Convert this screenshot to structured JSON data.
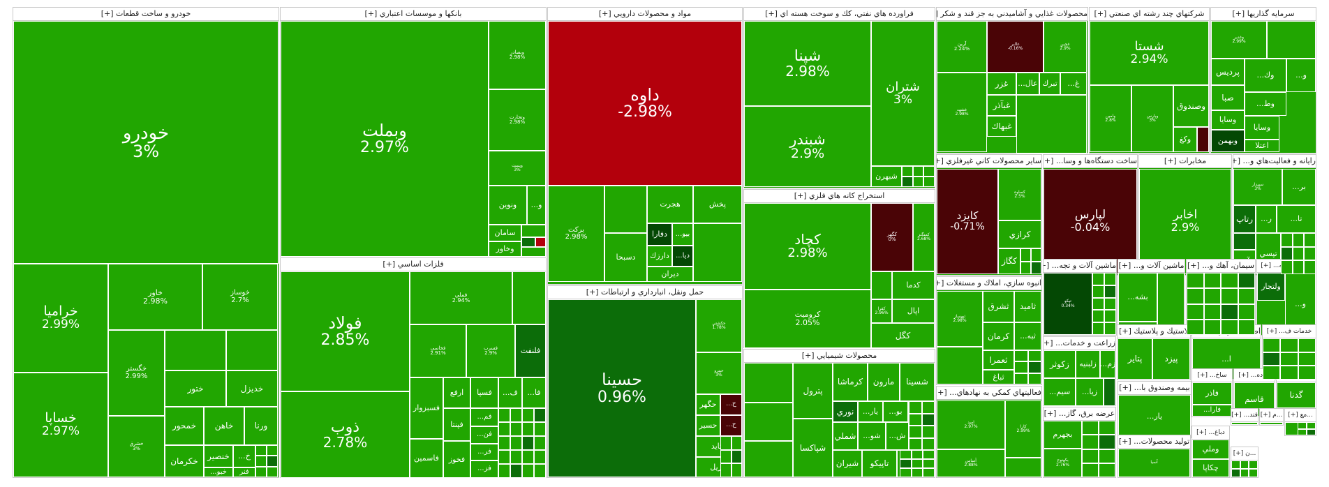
{
  "chart_data": {
    "type": "treemap",
    "title": "",
    "colors": {
      "up": "#21a601",
      "up_dark": "#0c6d09",
      "up_darker": "#044804",
      "down": "#b3000c",
      "down_dark": "#4a0406",
      "border": "#ffffff",
      "header_bg": "#ffffff"
    },
    "sectors": [
      {
        "name": "خودرو و ساخت قطعات [+]",
        "stocks": [
          {
            "symbol": "خودرو",
            "change": "3%"
          },
          {
            "symbol": "خراميا",
            "change": "2.99%"
          },
          {
            "symbol": "خساپا",
            "change": "2.97%"
          },
          {
            "symbol": "خاور",
            "change": "2.98%"
          },
          {
            "symbol": "خوساز",
            "change": "2.7%"
          },
          {
            "symbol": "خگستر",
            "change": "2.99%"
          },
          {
            "symbol": "خشرق",
            "change": "3%"
          },
          {
            "symbol": "ختور",
            "change": ""
          },
          {
            "symbol": "خموتور",
            "change": ""
          },
          {
            "symbol": "خديزل",
            "change": ""
          },
          {
            "symbol": "خمحور",
            "change": ""
          },
          {
            "symbol": "خاهن",
            "change": ""
          },
          {
            "symbol": "...خم",
            "change": ""
          },
          {
            "symbol": "ورنا",
            "change": ""
          },
          {
            "symbol": "خكرمان",
            "change": ""
          },
          {
            "symbol": "خنصير",
            "change": ""
          },
          {
            "symbol": "...خ",
            "change": ""
          },
          {
            "symbol": "...خبو",
            "change": ""
          },
          {
            "symbol": "فنر",
            "change": ""
          }
        ]
      },
      {
        "name": "بانكها و موسسات اعتباري [+]",
        "stocks": [
          {
            "symbol": "وبملت",
            "change": "2.97%"
          },
          {
            "symbol": "وبصادر",
            "change": "2.98%"
          },
          {
            "symbol": "وتجارت",
            "change": "2.98%"
          },
          {
            "symbol": "وپست",
            "change": "3%"
          },
          {
            "symbol": "ونوين",
            "change": ""
          },
          {
            "symbol": "...و",
            "change": ""
          },
          {
            "symbol": "سامان",
            "change": ""
          },
          {
            "symbol": "وخاور",
            "change": ""
          }
        ]
      },
      {
        "name": "فلزات اساسي [+]",
        "stocks": [
          {
            "symbol": "فولاد",
            "change": "2.85%"
          },
          {
            "symbol": "ذوب",
            "change": "2.78%"
          },
          {
            "symbol": "فملي",
            "change": "2.94%"
          },
          {
            "symbol": "فخوز",
            "change": "2.97%"
          },
          {
            "symbol": "فخاسي",
            "change": "2.91%"
          },
          {
            "symbol": "فسرب",
            "change": "2.9%"
          },
          {
            "symbol": "فلنفت",
            "change": ""
          },
          {
            "symbol": "فسبزوار",
            "change": ""
          },
          {
            "symbol": "ارفع",
            "change": ""
          },
          {
            "symbol": "فسپا",
            "change": ""
          },
          {
            "symbol": "...ف",
            "change": ""
          },
          {
            "symbol": "...فا",
            "change": ""
          },
          {
            "symbol": "فاسمين",
            "change": ""
          },
          {
            "symbol": "فپنتا",
            "change": ""
          },
          {
            "symbol": "...فم",
            "change": ""
          },
          {
            "symbol": "...فن",
            "change": ""
          },
          {
            "symbol": "...فر",
            "change": ""
          },
          {
            "symbol": "...فز",
            "change": ""
          },
          {
            "symbol": "فخوز",
            "change": ""
          }
        ]
      },
      {
        "name": "مواد و محصولات دارويي [+]",
        "stocks": [
          {
            "symbol": "داوه",
            "change": "-2.98%"
          },
          {
            "symbol": "بركت",
            "change": "2.98%"
          },
          {
            "symbol": "دسبحا",
            "change": ""
          },
          {
            "symbol": "هجرت",
            "change": ""
          },
          {
            "symbol": "پخش",
            "change": ""
          },
          {
            "symbol": "دفارا",
            "change": ""
          },
          {
            "symbol": "...بيو",
            "change": ""
          },
          {
            "symbol": "...ديا",
            "change": ""
          },
          {
            "symbol": "دارزك",
            "change": ""
          },
          {
            "symbol": "ديران",
            "change": ""
          }
        ]
      },
      {
        "name": "حمل ونقل، انبارداري و ارتباطات [+]",
        "stocks": [
          {
            "symbol": "حسينا",
            "change": "0.96%"
          },
          {
            "symbol": "حكشتي",
            "change": "1.78%"
          },
          {
            "symbol": "حپترو",
            "change": "3%"
          },
          {
            "symbol": "حگهر",
            "change": ""
          },
          {
            "symbol": "...ح",
            "change": ""
          },
          {
            "symbol": "حسير",
            "change": ""
          },
          {
            "symbol": "...ح",
            "change": ""
          },
          {
            "symbol": "حتايد",
            "change": ""
          },
          {
            "symbol": "توريل",
            "change": ""
          }
        ]
      },
      {
        "name": "فراورده هاي نفتي، كك و سوخت هسته اي [+]",
        "stocks": [
          {
            "symbol": "شپنا",
            "change": "2.98%"
          },
          {
            "symbol": "شبندر",
            "change": "2.9%"
          },
          {
            "symbol": "شتران",
            "change": "3%"
          },
          {
            "symbol": "شبهرن",
            "change": ""
          }
        ]
      },
      {
        "name": "استخراج كانه هاي فلزي [+]",
        "stocks": [
          {
            "symbol": "كچاد",
            "change": "2.98%"
          },
          {
            "symbol": "كروميت",
            "change": "2.05%"
          },
          {
            "symbol": "كگهر",
            "change": "0%"
          },
          {
            "symbol": "كمنگنز",
            "change": "2.68%"
          },
          {
            "symbol": "كدما",
            "change": ""
          },
          {
            "symbol": "كفرا",
            "change": "2.96%"
          },
          {
            "symbol": "اپال",
            "change": ""
          },
          {
            "symbol": "كگل",
            "change": ""
          }
        ]
      },
      {
        "name": "محصولات شيميايي [+]",
        "stocks": [
          {
            "symbol": "پترول",
            "change": ""
          },
          {
            "symbol": "كرماشا",
            "change": ""
          },
          {
            "symbol": "مارون",
            "change": ""
          },
          {
            "symbol": "شسينا",
            "change": ""
          },
          {
            "symbol": "شپاكسا",
            "change": ""
          },
          {
            "symbol": "نوري",
            "change": ""
          },
          {
            "symbol": "...يار",
            "change": ""
          },
          {
            "symbol": "...بو",
            "change": ""
          },
          {
            "symbol": "شملي",
            "change": ""
          },
          {
            "symbol": "...شو",
            "change": ""
          },
          {
            "symbol": "...ش",
            "change": ""
          },
          {
            "symbol": "تاپيكو",
            "change": ""
          },
          {
            "symbol": "شيران",
            "change": ""
          },
          {
            "symbol": "...شلعا",
            "change": ""
          }
        ]
      },
      {
        "name": "محصولات غذايي و آشاميدني به جز قند و شكر [+]",
        "stocks": [
          {
            "symbol": "غالبر",
            "change": "-0.16%"
          },
          {
            "symbol": "آرين",
            "change": "2.24%"
          },
          {
            "symbol": "غشهد",
            "change": "2.98%"
          },
          {
            "symbol": "غچين",
            "change": "2.9%"
          },
          {
            "symbol": "غزر",
            "change": ""
          },
          {
            "symbol": "...عال",
            "change": ""
          },
          {
            "symbol": "تبرك",
            "change": ""
          },
          {
            "symbol": "...غ",
            "change": ""
          },
          {
            "symbol": "غبآذر",
            "change": ""
          },
          {
            "symbol": "غبهاك",
            "change": ""
          }
        ]
      },
      {
        "name": "شركتهاي چند رشته اي صنعتي [+]",
        "stocks": [
          {
            "symbol": "شستا",
            "change": "2.94%"
          },
          {
            "symbol": "وصندوق",
            "change": ""
          },
          {
            "symbol": "وكغ",
            "change": ""
          },
          {
            "symbol": "وامين",
            "change": "2.8%"
          },
          {
            "symbol": "وپارس",
            "change": "3%"
          }
        ]
      },
      {
        "name": "سرمايه گذاريها [+]",
        "stocks": [
          {
            "symbol": "وغدير",
            "change": "2.99%"
          },
          {
            "symbol": "پرديس",
            "change": ""
          },
          {
            "symbol": "...وك",
            "change": ""
          },
          {
            "symbol": "...و",
            "change": ""
          },
          {
            "symbol": "صبا",
            "change": ""
          },
          {
            "symbol": "...وط",
            "change": ""
          },
          {
            "symbol": "وسايا",
            "change": ""
          },
          {
            "symbol": "وبهمن",
            "change": ""
          },
          {
            "symbol": "اعتلا",
            "change": ""
          }
        ]
      },
      {
        "name": "ساير محصولات كاني غيرفلزي [+]",
        "stocks": [
          {
            "symbol": "كايزد",
            "change": "-0.71%"
          },
          {
            "symbol": "كساوه",
            "change": "2.5%"
          },
          {
            "symbol": "كرازي",
            "change": ""
          },
          {
            "symbol": "كگاز",
            "change": ""
          }
        ]
      },
      {
        "name": "ساخت دستگاه‌ها و وسا... [+]",
        "stocks": [
          {
            "symbol": "لپارس",
            "change": "-0.04%"
          }
        ]
      },
      {
        "name": "مخابرات [+]",
        "stocks": [
          {
            "symbol": "اخابر",
            "change": "2.9%"
          }
        ]
      },
      {
        "name": "رايانه و فعاليت‌هاي و... [+]",
        "stocks": [
          {
            "symbol": "سپيدار",
            "change": "3%"
          },
          {
            "symbol": "...بر",
            "change": ""
          },
          {
            "symbol": "رتاپ",
            "change": ""
          },
          {
            "symbol": "...ر",
            "change": ""
          },
          {
            "symbol": "...تا",
            "change": ""
          },
          {
            "symbol": "آپ",
            "change": ""
          },
          {
            "symbol": "تپسي",
            "change": ""
          }
        ]
      },
      {
        "name": "انبوه سازي، املاك و مستغلات [+]",
        "stocks": [
          {
            "symbol": "ثبهساز",
            "change": "2.98%"
          },
          {
            "symbol": "ثشرق",
            "change": ""
          },
          {
            "symbol": "ثامید",
            "change": ""
          },
          {
            "symbol": "كرمان",
            "change": ""
          },
          {
            "symbol": "...ثبه",
            "change": ""
          },
          {
            "symbol": "ثعمرا",
            "change": ""
          },
          {
            "symbol": "ثباغ",
            "change": ""
          }
        ]
      },
      {
        "name": "فعاليتهاي كمكي به نهادهاي... [+]",
        "stocks": [
          {
            "symbol": "اميد",
            "change": "2.97%"
          },
          {
            "symbol": "كارا",
            "change": "2.99%"
          },
          {
            "symbol": "آساس",
            "change": "2.88%"
          }
        ]
      },
      {
        "name": "ماشين آلات و تجه... [+]",
        "stocks": [
          {
            "symbol": "تپكو",
            "change": "0.34%"
          }
        ]
      },
      {
        "name": "ماشين آلات و... [+]",
        "stocks": [
          {
            "symbol": "...بشه",
            "change": ""
          }
        ]
      },
      {
        "name": "سيمان، آهك و... [+]",
        "stocks": []
      },
      {
        "name": "ساير واسطه... [+]",
        "stocks": [
          {
            "symbol": "...وآ",
            "change": ""
          },
          {
            "symbol": "ولتجار",
            "change": ""
          },
          {
            "symbol": "...و",
            "change": ""
          }
        ]
      },
      {
        "name": "زراعت و خدمات... [+]",
        "stocks": [
          {
            "symbol": "زكوثر",
            "change": ""
          },
          {
            "symbol": "زلبنيه",
            "change": ""
          },
          {
            "symbol": "...زم",
            "change": ""
          },
          {
            "symbol": "...زيا",
            "change": ""
          },
          {
            "symbol": "...سيم",
            "change": ""
          }
        ]
      },
      {
        "name": "لاستيك و پلاستيك [+]",
        "stocks": [
          {
            "symbol": "پتاير",
            "change": ""
          },
          {
            "symbol": "پيزد",
            "change": ""
          }
        ]
      },
      {
        "name": "اطلاعات و ارتبا... [+]",
        "stocks": [
          {
            "symbol": "...ا",
            "change": ""
          }
        ]
      },
      {
        "name": "خدمات ف... [+]",
        "stocks": []
      },
      {
        "name": "عرضه برق، گاز... [+]",
        "stocks": [
          {
            "symbol": "بجهرم",
            "change": ""
          },
          {
            "symbol": "بكهنوج",
            "change": "2.76%"
          }
        ]
      },
      {
        "name": "بيمه وصندوق با... [+]",
        "stocks": [
          {
            "symbol": "...يار",
            "change": ""
          }
        ]
      },
      {
        "name": "ساخ... [+]",
        "stocks": [
          {
            "symbol": "فاذر",
            "change": ""
          },
          {
            "symbol": "...فارا",
            "change": ""
          }
        ]
      },
      {
        "name": "خرده... [+]",
        "stocks": [
          {
            "symbol": "قاسم",
            "change": ""
          }
        ]
      },
      {
        "name": "هتل و... [+]",
        "stocks": [
          {
            "symbol": "گدنا",
            "change": ""
          }
        ]
      },
      {
        "name": "توليد محصولات... [+]",
        "stocks": [
          {
            "symbol": "آسيا",
            "change": ""
          }
        ]
      },
      {
        "name": "دباغ... [+]",
        "stocks": [
          {
            "symbol": "وملي",
            "change": ""
          },
          {
            "symbol": "چكاپا",
            "change": ""
          }
        ]
      },
      {
        "name": "قند... [+]",
        "stocks": []
      },
      {
        "name": "...م [+]",
        "stocks": []
      },
      {
        "name": "...مع [+]",
        "stocks": []
      },
      {
        "name": "...ن [+]",
        "stocks": []
      }
    ]
  }
}
